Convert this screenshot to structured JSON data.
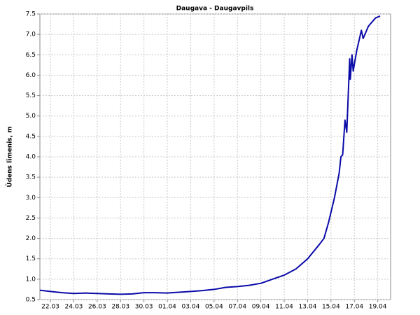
{
  "chart_data": {
    "type": "line",
    "title": "Daugava - Daugavpils",
    "y_label": "Ūdens līmenis, m",
    "grid": true,
    "xlim": [
      21.1,
      51.1
    ],
    "ylim": [
      0.5,
      7.5
    ],
    "xticks": [
      {
        "value": 22,
        "label": "22.03"
      },
      {
        "value": 24,
        "label": "24.03"
      },
      {
        "value": 26,
        "label": "26.03"
      },
      {
        "value": 28,
        "label": "28.03"
      },
      {
        "value": 30,
        "label": "30.03"
      },
      {
        "value": 32,
        "label": "01.04"
      },
      {
        "value": 34,
        "label": "03.04"
      },
      {
        "value": 36,
        "label": "05.04"
      },
      {
        "value": 38,
        "label": "07.04"
      },
      {
        "value": 40,
        "label": "09.04"
      },
      {
        "value": 42,
        "label": "11.04"
      },
      {
        "value": 44,
        "label": "13.04"
      },
      {
        "value": 46,
        "label": "15.04"
      },
      {
        "value": 48,
        "label": "17.04"
      },
      {
        "value": 50,
        "label": "19.04"
      }
    ],
    "yticks": [
      0.5,
      {
        "value": 1,
        "label": "1.0"
      },
      1.5,
      {
        "value": 2,
        "label": "2.0"
      },
      2.5,
      {
        "value": 3,
        "label": "3.0"
      },
      3.5,
      {
        "value": 4,
        "label": "4.0"
      },
      4.5,
      {
        "value": 5,
        "label": "5.0"
      },
      5.5,
      {
        "value": 6,
        "label": "6.0"
      },
      6.5,
      {
        "value": 7,
        "label": "7.0"
      },
      7.5
    ],
    "x": [
      21.1,
      22,
      23,
      24,
      25,
      26,
      27,
      28,
      29,
      30,
      31,
      32,
      33,
      34,
      35,
      36,
      37,
      38,
      39,
      40,
      41,
      42,
      43,
      44,
      45,
      45.4,
      45.8,
      46.3,
      46.7,
      46.85,
      47.0,
      47.2,
      47.35,
      47.6,
      47.65,
      47.8,
      47.9,
      48.2,
      48.6,
      48.75,
      49.2,
      49.8,
      50.2
    ],
    "series": [
      {
        "color": "#0a0aa8",
        "values": [
          0.73,
          0.7,
          0.67,
          0.65,
          0.66,
          0.65,
          0.64,
          0.63,
          0.64,
          0.67,
          0.67,
          0.66,
          0.68,
          0.7,
          0.72,
          0.75,
          0.8,
          0.82,
          0.85,
          0.9,
          1.0,
          1.1,
          1.25,
          1.5,
          1.85,
          2.0,
          2.4,
          3.0,
          3.6,
          4.0,
          4.05,
          4.9,
          4.6,
          6.4,
          5.9,
          6.5,
          6.1,
          6.6,
          7.1,
          6.9,
          7.2,
          7.4,
          7.45
        ]
      }
    ]
  }
}
